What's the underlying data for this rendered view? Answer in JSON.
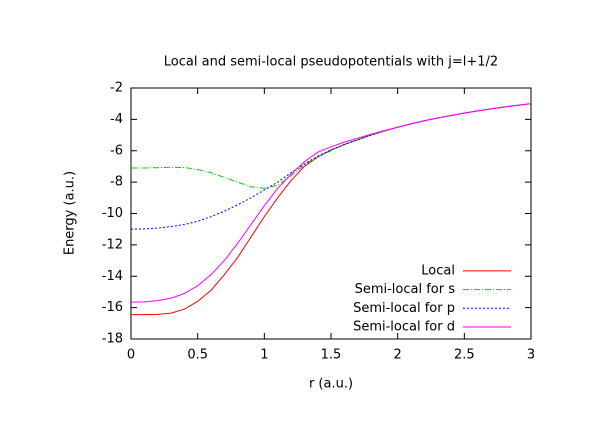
{
  "chart_data": {
    "type": "line",
    "title": "Local and semi-local pseudopotentials with j=l+1/2",
    "x_label": "r (a.u.)",
    "y_label": "Energy (a.u.)",
    "x": [
      0,
      0.1,
      0.2,
      0.3,
      0.4,
      0.5,
      0.6,
      0.7,
      0.8,
      0.9,
      1.0,
      1.1,
      1.2,
      1.3,
      1.4,
      1.5,
      1.6,
      1.7,
      1.8,
      1.9,
      2.0,
      2.1,
      2.2,
      2.3,
      2.4,
      2.5,
      2.6,
      2.7,
      2.8,
      2.9,
      3.0
    ],
    "series": [
      {
        "name": "Local",
        "color": "#ff0000",
        "dash": "none",
        "values": [
          -16.45,
          -16.45,
          -16.43,
          -16.35,
          -16.1,
          -15.6,
          -14.9,
          -13.9,
          -12.8,
          -11.5,
          -10.2,
          -9.0,
          -7.9,
          -7.0,
          -6.4,
          -5.95,
          -5.6,
          -5.3,
          -5.0,
          -4.74,
          -4.5,
          -4.29,
          -4.09,
          -3.91,
          -3.75,
          -3.6,
          -3.46,
          -3.33,
          -3.21,
          -3.1,
          -3.0
        ]
      },
      {
        "name": "Semi-local for s",
        "color": "#00d000",
        "dash": "6,2,1,2",
        "values": [
          -7.1,
          -7.1,
          -7.08,
          -7.05,
          -7.07,
          -7.2,
          -7.4,
          -7.7,
          -8.0,
          -8.3,
          -8.4,
          -8.2,
          -7.6,
          -6.9,
          -6.4,
          -6.0,
          -5.6,
          -5.3,
          -5.0,
          -4.74,
          -4.5,
          -4.29,
          -4.09,
          -3.91,
          -3.75,
          -3.6,
          -3.46,
          -3.33,
          -3.21,
          -3.1,
          -3.0
        ]
      },
      {
        "name": "Semi-local for p",
        "color": "#0000ff",
        "dash": "2,2",
        "values": [
          -11.0,
          -10.98,
          -10.93,
          -10.83,
          -10.7,
          -10.5,
          -10.2,
          -9.85,
          -9.45,
          -9.0,
          -8.5,
          -8.0,
          -7.4,
          -6.85,
          -6.35,
          -5.95,
          -5.6,
          -5.3,
          -5.0,
          -4.74,
          -4.5,
          -4.29,
          -4.09,
          -3.91,
          -3.75,
          -3.6,
          -3.46,
          -3.33,
          -3.21,
          -3.1,
          -3.0
        ]
      },
      {
        "name": "Semi-local for d",
        "color": "#ff00ff",
        "dash": "none",
        "values": [
          -15.65,
          -15.63,
          -15.55,
          -15.4,
          -15.1,
          -14.6,
          -13.9,
          -13.0,
          -11.9,
          -10.7,
          -9.5,
          -8.4,
          -7.5,
          -6.7,
          -6.1,
          -5.75,
          -5.45,
          -5.2,
          -4.95,
          -4.72,
          -4.5,
          -4.29,
          -4.09,
          -3.91,
          -3.75,
          -3.6,
          -3.46,
          -3.33,
          -3.21,
          -3.1,
          -3.0
        ]
      }
    ],
    "xlim": [
      0,
      3
    ],
    "ylim": [
      -18,
      -2
    ],
    "xticks": [
      0,
      0.5,
      1,
      1.5,
      2,
      2.5,
      3
    ],
    "yticks": [
      -18,
      -16,
      -14,
      -12,
      -10,
      -8,
      -6,
      -4,
      -2
    ],
    "legend": "bottom-right"
  }
}
